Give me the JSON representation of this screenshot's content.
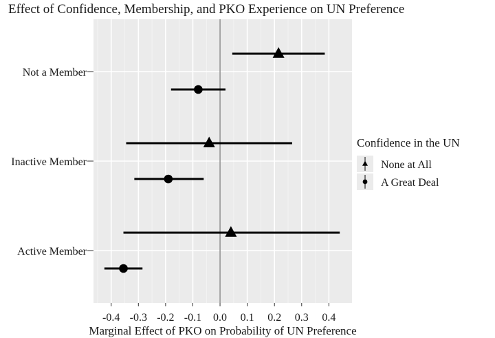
{
  "chart_data": {
    "type": "scatter",
    "title": "Effect of Confidence, Membership, and PKO Experience on UN Preference",
    "xlabel": "Marginal Effect of PKO on Probability of UN Preference",
    "ylabel": "",
    "xlim": [
      -0.465,
      0.485
    ],
    "x_ticks": [
      "-0.4",
      "-0.3",
      "-0.2",
      "-0.1",
      "0.0",
      "0.1",
      "0.2",
      "0.3",
      "0.4"
    ],
    "x_tick_values": [
      -0.4,
      -0.3,
      -0.2,
      -0.1,
      0.0,
      0.1,
      0.2,
      0.3,
      0.4
    ],
    "reference_line_x": 0,
    "grid": true,
    "categories": [
      "Not a Member",
      "Inactive Member",
      "Active Member"
    ],
    "legend": {
      "title": "Confidence in the UN",
      "placement": "right"
    },
    "series": [
      {
        "name": "None at All",
        "marker": "triangle",
        "points": [
          {
            "category": "Not a Member",
            "estimate": 0.215,
            "lower": 0.045,
            "upper": 0.385
          },
          {
            "category": "Inactive Member",
            "estimate": -0.04,
            "lower": -0.345,
            "upper": 0.265
          },
          {
            "category": "Active Member",
            "estimate": 0.04,
            "lower": -0.355,
            "upper": 0.44
          }
        ]
      },
      {
        "name": "A Great Deal",
        "marker": "circle",
        "points": [
          {
            "category": "Not a Member",
            "estimate": -0.08,
            "lower": -0.18,
            "upper": 0.02
          },
          {
            "category": "Inactive Member",
            "estimate": -0.19,
            "lower": -0.315,
            "upper": -0.06
          },
          {
            "category": "Active Member",
            "estimate": -0.355,
            "lower": -0.425,
            "upper": -0.285
          }
        ]
      }
    ],
    "colors": {
      "panel": "#ebebeb",
      "grid": "#ffffff",
      "marks": "#000000",
      "reference_line": "#555555"
    }
  }
}
